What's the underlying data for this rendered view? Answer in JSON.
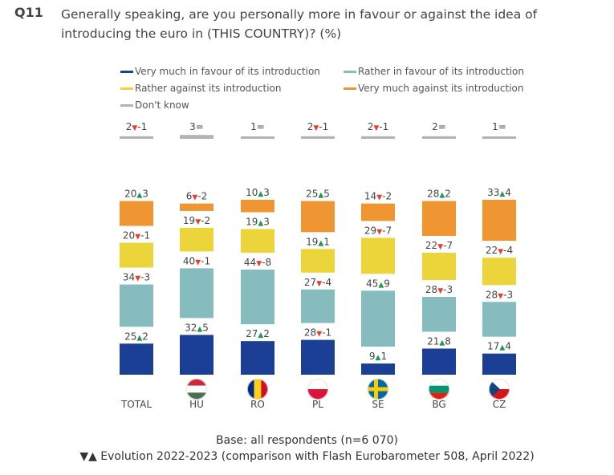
{
  "question": {
    "code": "Q11",
    "text": "Generally speaking, are you personally more in favour or against the idea of introducing the euro in (THIS COUNTRY)? (%)"
  },
  "legend": [
    {
      "label": "Very much in favour of its introduction",
      "color": "#1b3f94"
    },
    {
      "label": "Rather in favour of its introduction",
      "color": "#86bcbd"
    },
    {
      "label": "Rather against its introduction",
      "color": "#ecd53b"
    },
    {
      "label": "Very much against its introduction",
      "color": "#ef9633"
    },
    {
      "label": "Don't know",
      "color": "#b3b3b3"
    }
  ],
  "footer": {
    "base": "Base: all respondents (n=6 070)",
    "evolution": "▼▲ Evolution 2022-2023 (comparison with Flash Eurobarometer 508, April 2022)"
  },
  "chart_data": {
    "type": "bar",
    "stacked": true,
    "categories": [
      "TOTAL",
      "HU",
      "RO",
      "PL",
      "SE",
      "BG",
      "CZ"
    ],
    "flag_icons": [
      "",
      "hungary-flag-icon",
      "romania-flag-icon",
      "poland-flag-icon",
      "sweden-flag-icon",
      "bulgaria-flag-icon",
      "czechia-flag-icon"
    ],
    "series": [
      {
        "name": "Very much in favour of its introduction",
        "color": "#1b3f94",
        "values": [
          25,
          32,
          27,
          28,
          9,
          21,
          17
        ],
        "labels": [
          "25▲2",
          "32▲5",
          "27▲2",
          "28▼-1",
          "9▲1",
          "21▲8",
          "17▲4"
        ]
      },
      {
        "name": "Rather in favour of its introduction",
        "color": "#86bcbd",
        "values": [
          34,
          40,
          44,
          27,
          45,
          28,
          28
        ],
        "labels": [
          "34▼-3",
          "40▼-1",
          "44▼-8",
          "27▼-4",
          "45▲9",
          "28▼-3",
          "28▼-3"
        ]
      },
      {
        "name": "Rather against its introduction",
        "color": "#ecd53b",
        "values": [
          20,
          19,
          19,
          19,
          29,
          22,
          22
        ],
        "labels": [
          "20▼-1",
          "19▼-2",
          "19▲3",
          "19▲1",
          "29▼-7",
          "22▼-7",
          "22▼-4"
        ]
      },
      {
        "name": "Very much against its introduction",
        "color": "#ef9633",
        "values": [
          20,
          6,
          10,
          25,
          14,
          28,
          33
        ],
        "labels": [
          "20▲3",
          "6▼-2",
          "10▲3",
          "25▲5",
          "14▼-2",
          "28▲2",
          "33▲4"
        ]
      },
      {
        "name": "Don't know",
        "color": "#b3b3b3",
        "values": [
          2,
          3,
          1,
          2,
          2,
          2,
          1
        ],
        "labels": [
          "2▼-1",
          "3=",
          "1=",
          "2▼-1",
          "2▼-1",
          "2=",
          "1="
        ]
      }
    ],
    "delta_colors": {
      "up": "#1a9a4a",
      "down": "#e53e2e"
    }
  }
}
